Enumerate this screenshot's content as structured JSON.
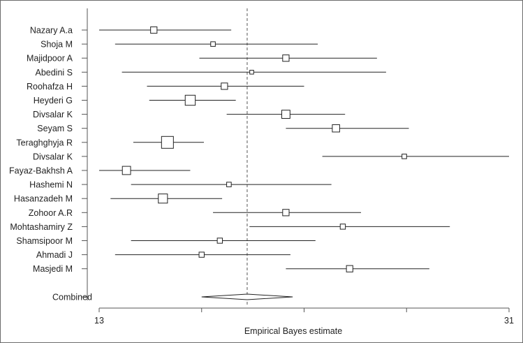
{
  "chart_data": {
    "type": "forest",
    "xlabel": "Empirical Bayes estimate",
    "xlim": [
      13,
      31
    ],
    "xticks": [
      13,
      31
    ],
    "reference_line": 19.5,
    "studies": [
      {
        "label": "Nazary A.a",
        "estimate": 15.4,
        "lower": 13.0,
        "upper": 18.8,
        "weight": 2
      },
      {
        "label": "Shoja M",
        "estimate": 18.0,
        "lower": 13.7,
        "upper": 22.6,
        "weight": 1
      },
      {
        "label": "Majidpoor A",
        "estimate": 21.2,
        "lower": 17.4,
        "upper": 25.2,
        "weight": 2
      },
      {
        "label": "Abedini S",
        "estimate": 19.7,
        "lower": 14.0,
        "upper": 25.6,
        "weight": 0.6
      },
      {
        "label": "Roohafza H",
        "estimate": 18.5,
        "lower": 15.1,
        "upper": 22.0,
        "weight": 2
      },
      {
        "label": "Heyderi G",
        "estimate": 17.0,
        "lower": 15.2,
        "upper": 19.0,
        "weight": 4
      },
      {
        "label": "Divsalar K",
        "estimate": 21.2,
        "lower": 18.6,
        "upper": 23.8,
        "weight": 3
      },
      {
        "label": "Seyam S",
        "estimate": 23.4,
        "lower": 21.2,
        "upper": 26.6,
        "weight": 2.5
      },
      {
        "label": "Teraghghyja R",
        "estimate": 16.0,
        "lower": 14.5,
        "upper": 17.6,
        "weight": 5
      },
      {
        "label": "Divsalar K",
        "estimate": 26.4,
        "lower": 22.8,
        "upper": 31.0,
        "weight": 1
      },
      {
        "label": "Fayaz-Bakhsh A",
        "estimate": 14.2,
        "lower": 13.0,
        "upper": 17.0,
        "weight": 3
      },
      {
        "label": "Hashemi N",
        "estimate": 18.7,
        "lower": 14.4,
        "upper": 23.2,
        "weight": 1
      },
      {
        "label": "Hasanzadeh M",
        "estimate": 15.8,
        "lower": 13.5,
        "upper": 18.4,
        "weight": 3.5
      },
      {
        "label": "Zohoor A.R",
        "estimate": 21.2,
        "lower": 18.0,
        "upper": 24.5,
        "weight": 2
      },
      {
        "label": "Mohtashamiry Z",
        "estimate": 23.7,
        "lower": 19.6,
        "upper": 28.4,
        "weight": 1.3
      },
      {
        "label": "Shamsipoor M",
        "estimate": 18.3,
        "lower": 14.4,
        "upper": 22.5,
        "weight": 1.3
      },
      {
        "label": "Ahmadi J",
        "estimate": 17.5,
        "lower": 13.7,
        "upper": 21.4,
        "weight": 1.3
      },
      {
        "label": "Masjedi M",
        "estimate": 24.0,
        "lower": 21.2,
        "upper": 27.5,
        "weight": 2
      }
    ],
    "combined": {
      "label": "Combined",
      "estimate": 19.5,
      "lower": 17.5,
      "upper": 21.5
    }
  }
}
